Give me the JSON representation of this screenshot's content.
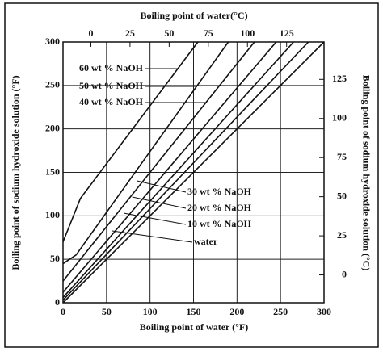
{
  "chart_data": {
    "type": "line",
    "x_label": "Boiling point of water (°F)",
    "x2_label": "Boiling point of water(°C)",
    "y_label": "Boiling point of sodium hydroxide solution (°F)",
    "y2_label": "Boiling point of sodium hydroxide solution (°C)",
    "xlim": [
      0,
      300
    ],
    "xticks": [
      0,
      50,
      100,
      150,
      200,
      250,
      300
    ],
    "ylim": [
      0,
      300
    ],
    "yticks": [
      0,
      50,
      100,
      150,
      200,
      250,
      300
    ],
    "x2lim": [
      -17.78,
      148.89
    ],
    "x2ticks": [
      0,
      25,
      50,
      75,
      100,
      125
    ],
    "y2lim": [
      -17.78,
      148.89
    ],
    "y2ticks": [
      0,
      25,
      50,
      75,
      100,
      125
    ],
    "grid": true,
    "color": "#111111",
    "series": [
      {
        "name": "60 wt % NaOH",
        "x": [
          0,
          20,
          155
        ],
        "values": [
          70,
          120,
          300
        ]
      },
      {
        "name": "50 wt % NaOH",
        "x": [
          0,
          15,
          190
        ],
        "values": [
          45,
          55,
          300
        ]
      },
      {
        "name": "40 wt % NaOH",
        "x": [
          0,
          220
        ],
        "values": [
          25,
          300
        ]
      },
      {
        "name": "30 wt % NaOH",
        "x": [
          0,
          245
        ],
        "values": [
          12,
          300
        ]
      },
      {
        "name": "20 wt % NaOH",
        "x": [
          0,
          265
        ],
        "values": [
          6,
          300
        ]
      },
      {
        "name": "10 wt % NaOH",
        "x": [
          0,
          282
        ],
        "values": [
          3,
          300
        ]
      },
      {
        "name": "water",
        "x": [
          0,
          300
        ],
        "values": [
          0,
          300
        ]
      }
    ]
  }
}
